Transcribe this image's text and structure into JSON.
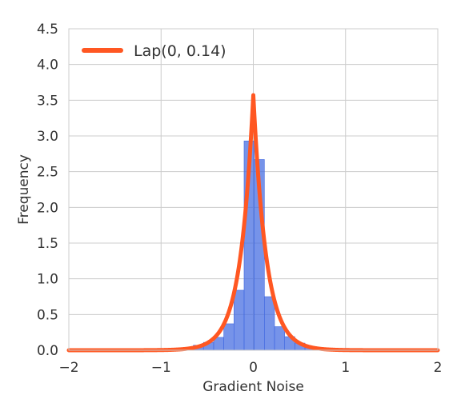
{
  "chart_data": {
    "type": "bar",
    "xlabel": "Gradient Noise",
    "ylabel": "Frequency",
    "xlim": [
      -2,
      2
    ],
    "ylim": [
      0,
      4.5
    ],
    "xticks": [
      -2,
      -1,
      0,
      1,
      2
    ],
    "xtick_labels": [
      "−2",
      "−1",
      "0",
      "1",
      "2"
    ],
    "yticks": [
      0,
      0.5,
      1,
      1.5,
      2,
      2.5,
      3,
      3.5,
      4,
      4.5
    ],
    "ytick_labels": [
      "0.0",
      "0.5",
      "1.0",
      "1.5",
      "2.0",
      "2.5",
      "3.0",
      "3.5",
      "4.0",
      "4.5"
    ],
    "grid": true,
    "legend_position": "top-left",
    "histogram": {
      "bin_edges": [
        -0.65,
        -0.54,
        -0.43,
        -0.32,
        -0.21,
        -0.1,
        0.01,
        0.12,
        0.23,
        0.34,
        0.45,
        0.56,
        0.67
      ],
      "counts": [
        0.07,
        0.11,
        0.18,
        0.37,
        0.84,
        2.93,
        2.67,
        0.75,
        0.33,
        0.19,
        0.1,
        0.04
      ],
      "color": "#4169e1"
    },
    "series": [
      {
        "name": "Lap(0, 0.14)",
        "type": "line",
        "distribution": "laplace",
        "loc": 0,
        "scale": 0.14,
        "color": "#ff5722"
      }
    ]
  }
}
